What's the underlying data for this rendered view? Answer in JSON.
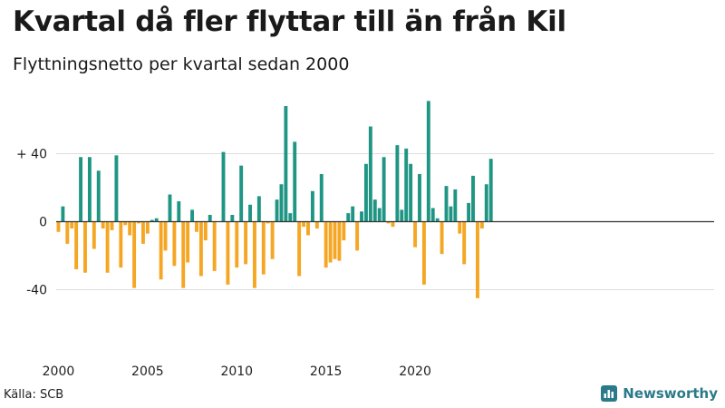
{
  "title": "Kvartal då fler flyttar till än från Kil",
  "subtitle": "Flyttningsnetto per kvartal sedan 2000",
  "source": "Källa: SCB",
  "brand": "Newsworthy",
  "colors": {
    "positive": "#1f9584",
    "negative": "#f5a623",
    "grid": "#dddddd",
    "axis": "#333333"
  },
  "chart_data": {
    "type": "bar",
    "title": "Kvartal då fler flyttar till än från Kil",
    "subtitle": "Flyttningsnetto per kvartal sedan 2000",
    "xlabel": "",
    "ylabel": "",
    "ylim": [
      -60,
      70
    ],
    "grid": true,
    "y_ticks": [
      {
        "value": 40,
        "label": "+ 40"
      },
      {
        "value": 0,
        "label": "0"
      },
      {
        "value": -40,
        "label": "-40"
      }
    ],
    "x_ticks": [
      {
        "value": "2000 Q1",
        "label": "2000"
      },
      {
        "value": "2005 Q1",
        "label": "2005"
      },
      {
        "value": "2010 Q1",
        "label": "2010"
      },
      {
        "value": "2015 Q1",
        "label": "2015"
      },
      {
        "value": "2020 Q1",
        "label": "2020"
      }
    ],
    "start": {
      "year": 2000,
      "quarter": 1
    },
    "values": [
      -6,
      9,
      -13,
      -4,
      -28,
      38,
      -30,
      38,
      -16,
      30,
      -4,
      -30,
      -5,
      39,
      -27,
      -2,
      -8,
      -39,
      -1,
      -13,
      -7,
      1,
      2,
      -34,
      -17,
      16,
      -26,
      12,
      -39,
      -24,
      7,
      -6,
      -32,
      -11,
      4,
      -29,
      0,
      41,
      -37,
      4,
      -27,
      33,
      -25,
      10,
      -39,
      15,
      -31,
      -1,
      -22,
      13,
      22,
      68,
      5,
      47,
      -32,
      -3,
      -8,
      18,
      -4,
      28,
      -27,
      -24,
      -22,
      -23,
      -11,
      5,
      9,
      -17,
      6,
      34,
      56,
      13,
      8,
      38,
      -1,
      -3,
      45,
      7,
      43,
      34,
      -15,
      28,
      -37,
      71,
      8,
      2,
      -19,
      21,
      9,
      19,
      -7,
      -25,
      11,
      27,
      -45,
      -4,
      22,
      37
    ]
  }
}
